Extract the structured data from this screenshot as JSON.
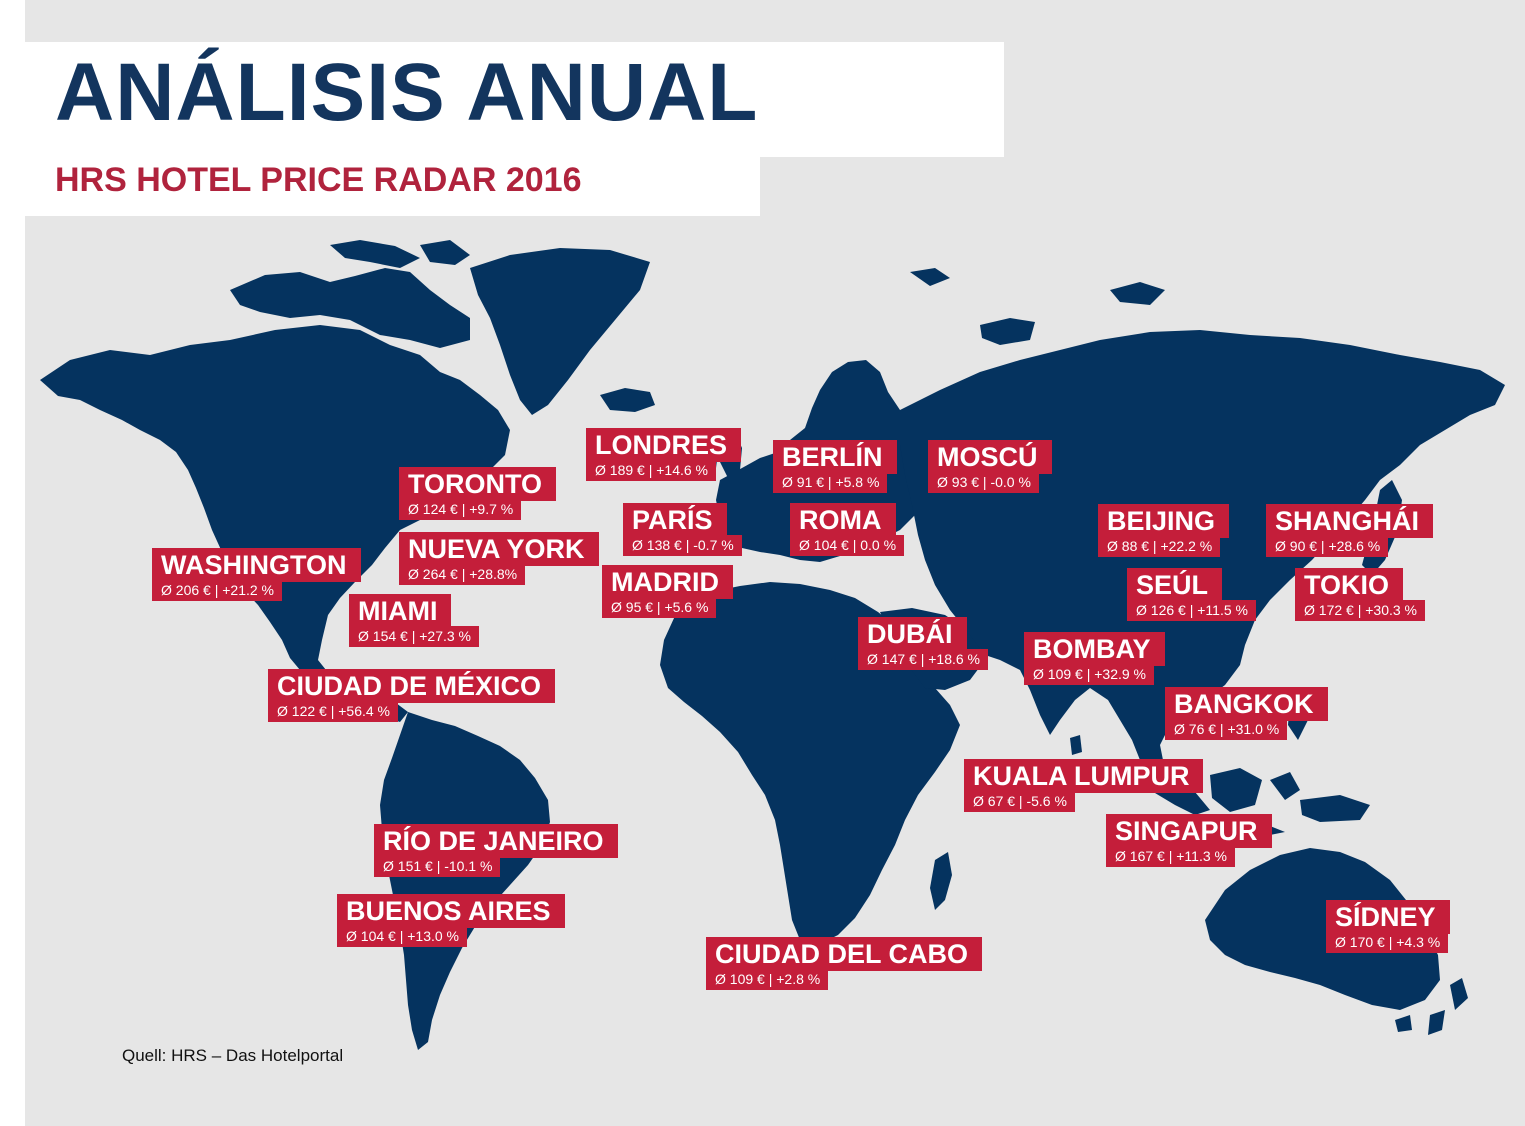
{
  "title": "ANÁLISIS ANUAL",
  "subtitle": "HRS HOTEL PRICE RADAR 2016",
  "source": "Quell: HRS – Das Hotelportal",
  "colors": {
    "land": "#05335f",
    "label_bg": "#c41e3a",
    "background": "#e6e6e6",
    "title": "#13355e",
    "subtitle": "#b0233d"
  },
  "cities": [
    {
      "name": "LONDRES",
      "stat": "Ø 189 € | +14.6 %",
      "avg_price_eur": 189,
      "change_pct": 14.6
    },
    {
      "name": "BERLÍN",
      "stat": "Ø 91 € | +5.8 %",
      "avg_price_eur": 91,
      "change_pct": 5.8
    },
    {
      "name": "MOSCÚ",
      "stat": "Ø 93 € | -0.0 %",
      "avg_price_eur": 93,
      "change_pct": -0.0
    },
    {
      "name": "TORONTO",
      "stat": "Ø 124 € | +9.7 %",
      "avg_price_eur": 124,
      "change_pct": 9.7
    },
    {
      "name": "PARÍS",
      "stat": "Ø 138 € | -0.7 %",
      "avg_price_eur": 138,
      "change_pct": -0.7
    },
    {
      "name": "ROMA",
      "stat": "Ø 104 € | 0.0 %",
      "avg_price_eur": 104,
      "change_pct": 0.0
    },
    {
      "name": "BEIJING",
      "stat": "Ø 88 € | +22.2 %",
      "avg_price_eur": 88,
      "change_pct": 22.2
    },
    {
      "name": "SHANGHÁI",
      "stat": "Ø 90 € | +28.6 %",
      "avg_price_eur": 90,
      "change_pct": 28.6
    },
    {
      "name": "WASHINGTON",
      "stat": "Ø 206 € | +21.2 %",
      "avg_price_eur": 206,
      "change_pct": 21.2
    },
    {
      "name": "NUEVA YORK",
      "stat": "Ø 264 € | +28.8%",
      "avg_price_eur": 264,
      "change_pct": 28.8
    },
    {
      "name": "MADRID",
      "stat": "Ø 95 € | +5.6 %",
      "avg_price_eur": 95,
      "change_pct": 5.6
    },
    {
      "name": "SEÚL",
      "stat": "Ø 126 € | +11.5 %",
      "avg_price_eur": 126,
      "change_pct": 11.5
    },
    {
      "name": "TOKIO",
      "stat": "Ø 172 € | +30.3 %",
      "avg_price_eur": 172,
      "change_pct": 30.3
    },
    {
      "name": "MIAMI",
      "stat": "Ø 154 € | +27.3 %",
      "avg_price_eur": 154,
      "change_pct": 27.3
    },
    {
      "name": "DUBÁI",
      "stat": "Ø 147 € | +18.6 %",
      "avg_price_eur": 147,
      "change_pct": 18.6
    },
    {
      "name": "BOMBAY",
      "stat": "Ø 109 € | +32.9 %",
      "avg_price_eur": 109,
      "change_pct": 32.9
    },
    {
      "name": "CIUDAD DE MÉXICO",
      "stat": "Ø 122 € | +56.4 %",
      "avg_price_eur": 122,
      "change_pct": 56.4
    },
    {
      "name": "BANGKOK",
      "stat": "Ø 76 € | +31.0 %",
      "avg_price_eur": 76,
      "change_pct": 31.0
    },
    {
      "name": "KUALA LUMPUR",
      "stat": "Ø 67 € | -5.6 %",
      "avg_price_eur": 67,
      "change_pct": -5.6
    },
    {
      "name": "SINGAPUR",
      "stat": "Ø 167 € | +11.3 %",
      "avg_price_eur": 167,
      "change_pct": 11.3
    },
    {
      "name": "RÍO DE JANEIRO",
      "stat": "Ø 151 € | -10.1 %",
      "avg_price_eur": 151,
      "change_pct": -10.1
    },
    {
      "name": "BUENOS AIRES",
      "stat": "Ø 104 € | +13.0 %",
      "avg_price_eur": 104,
      "change_pct": 13.0
    },
    {
      "name": "SÍDNEY",
      "stat": "Ø 170 € | +4.3 %",
      "avg_price_eur": 170,
      "change_pct": 4.3
    },
    {
      "name": "CIUDAD DEL CABO",
      "stat": "Ø 109 € | +2.8 %",
      "avg_price_eur": 109,
      "change_pct": 2.8
    }
  ]
}
